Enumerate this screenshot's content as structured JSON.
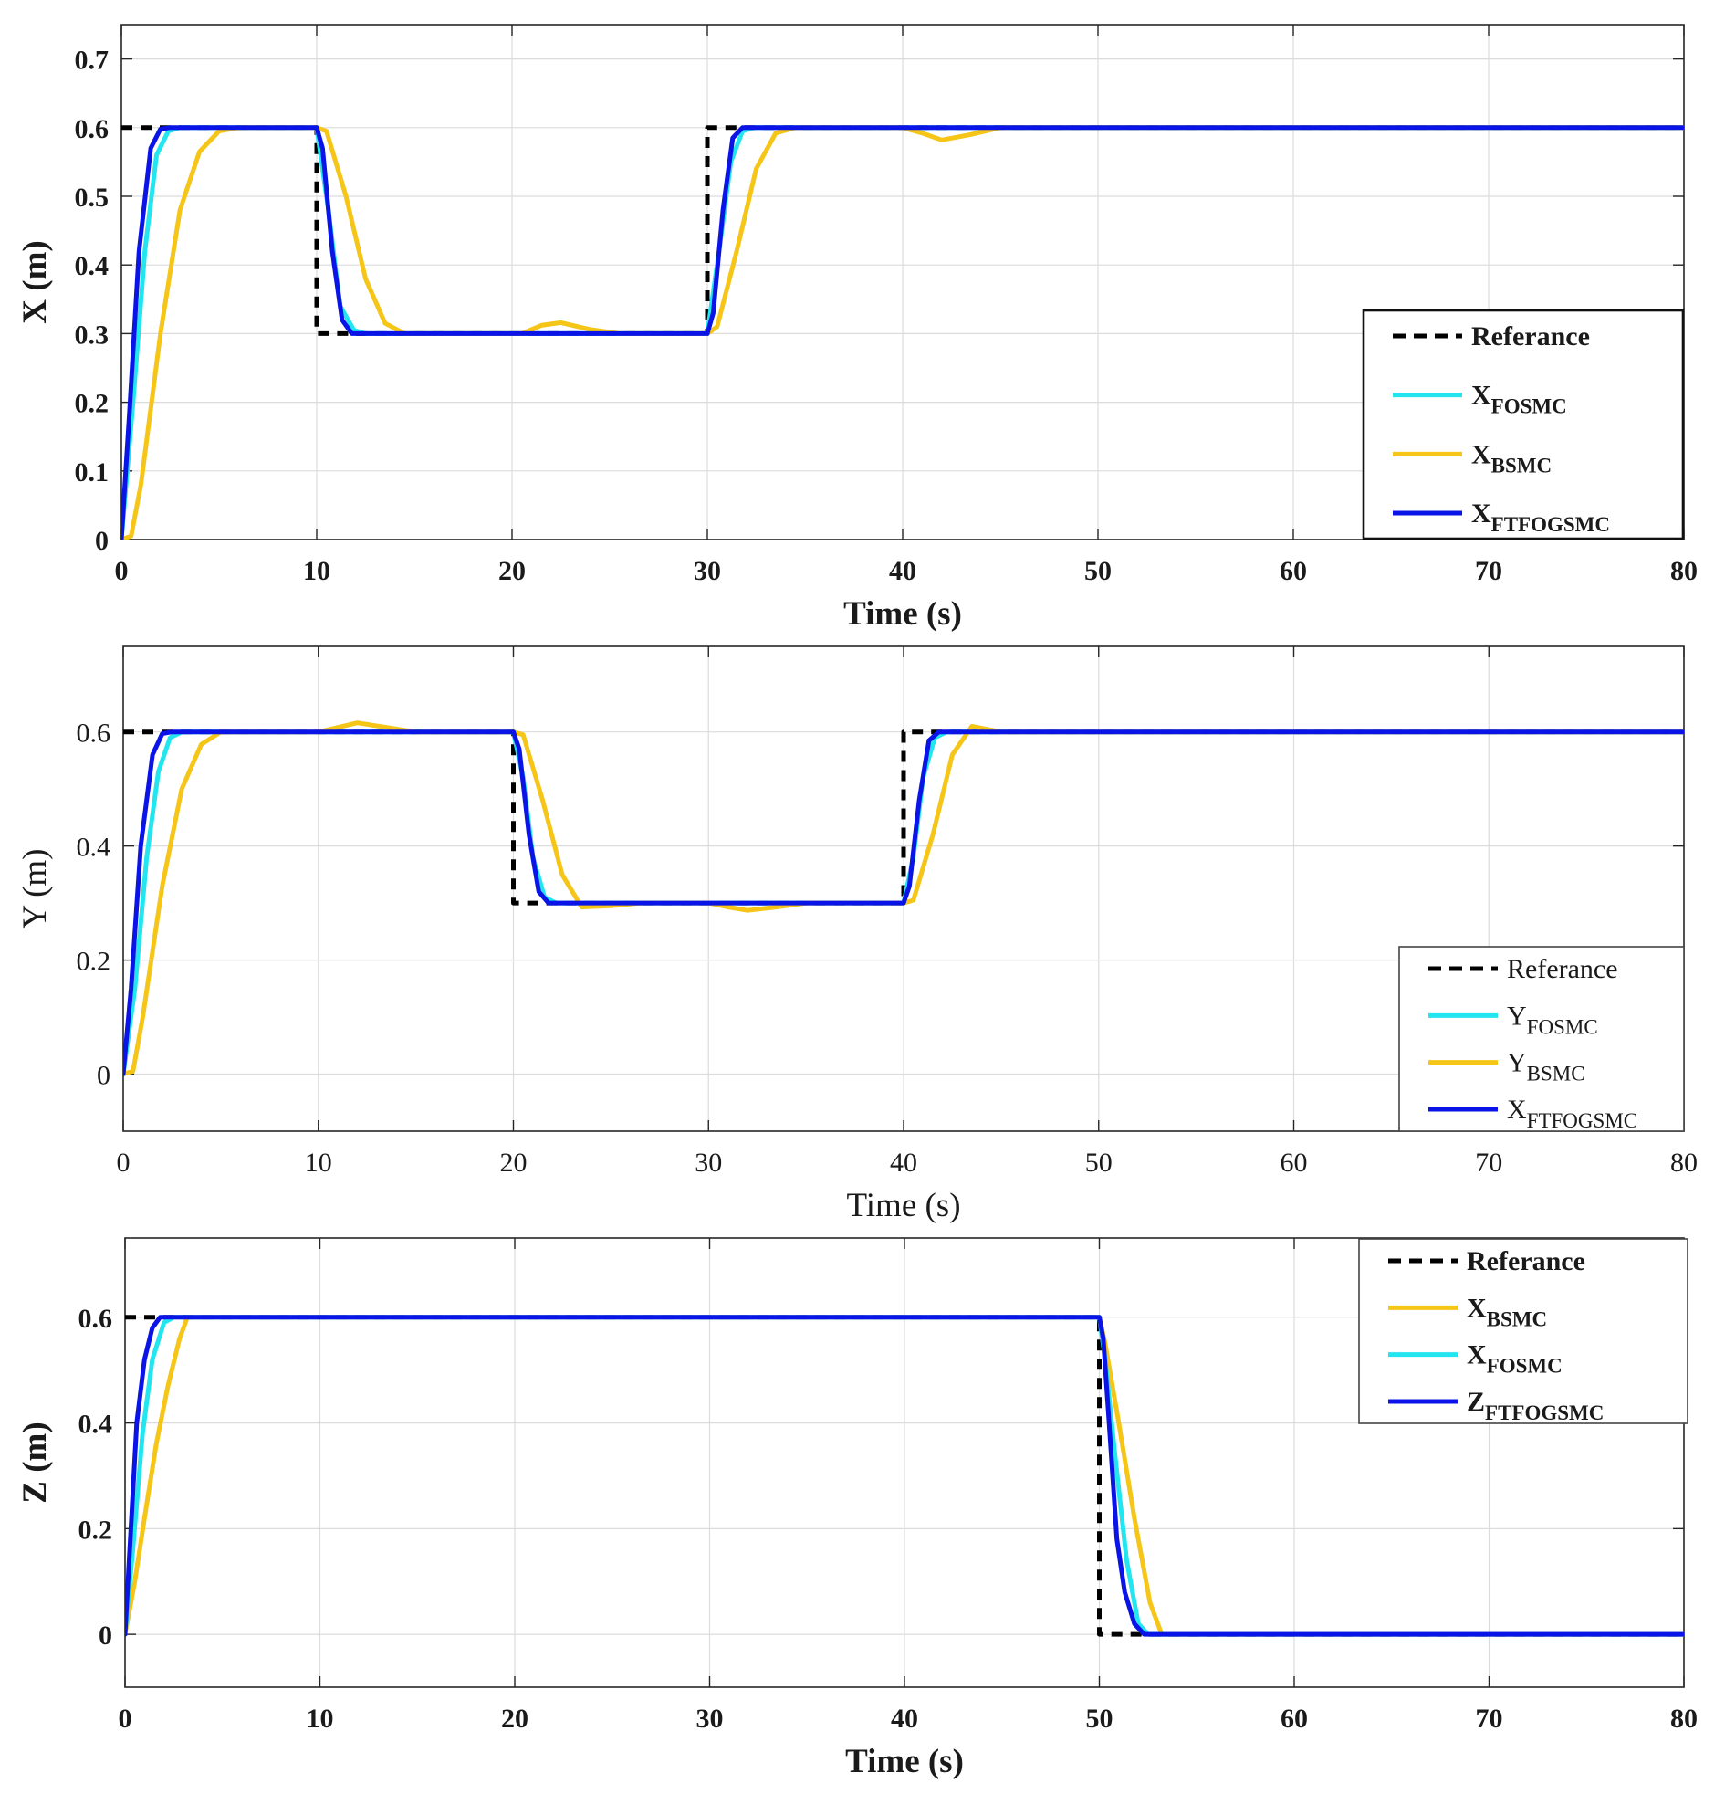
{
  "colors": {
    "reference": "#000000",
    "fosmc": "#22E5F0",
    "bsmc": "#F5C518",
    "ftfogsmc": "#0A14E6",
    "grid": "#dcdcdc",
    "axis": "#262626"
  },
  "chart_data": [
    {
      "type": "line",
      "title": "",
      "xlabel": "Time (s)",
      "ylabel": "X (m)",
      "xlim": [
        0,
        80
      ],
      "ylim": [
        0,
        0.75
      ],
      "xticks": [
        0,
        10,
        20,
        30,
        40,
        50,
        60,
        70,
        80
      ],
      "yticks": [
        0,
        0.1,
        0.2,
        0.3,
        0.4,
        0.5,
        0.6,
        0.7
      ],
      "ytick_labels": [
        "0",
        "0.1",
        "0.2",
        "0.3",
        "0.4",
        "0.5",
        "0.6",
        "0.7"
      ],
      "xtick_labels": [
        "0",
        "10",
        "20",
        "30",
        "40",
        "50",
        "60",
        "70",
        "80"
      ],
      "grid": true,
      "font_style": "bold",
      "legend_position": "lower-right",
      "series": [
        {
          "name": "Referance",
          "main": "Referance",
          "sub": "",
          "style": "dashed",
          "color_key": "reference",
          "x": [
            0,
            10,
            10,
            30,
            30,
            80
          ],
          "y": [
            0.6,
            0.6,
            0.3,
            0.3,
            0.6,
            0.6
          ]
        },
        {
          "name": "X_FOSMC",
          "main": "X",
          "sub": "FOSMC",
          "style": "solid",
          "color_key": "fosmc",
          "x": [
            0,
            0.6,
            1.2,
            1.8,
            2.4,
            3.0,
            10,
            10.6,
            11.2,
            11.9,
            12.5,
            30,
            30.6,
            31.2,
            31.8,
            32.4,
            80
          ],
          "y": [
            0,
            0.2,
            0.42,
            0.56,
            0.595,
            0.6,
            0.6,
            0.48,
            0.34,
            0.305,
            0.3,
            0.3,
            0.42,
            0.55,
            0.595,
            0.6,
            0.6
          ]
        },
        {
          "name": "X_BSMC",
          "main": "X",
          "sub": "BSMC",
          "style": "solid",
          "color_key": "bsmc",
          "x": [
            0,
            0.5,
            1.0,
            2.0,
            3.0,
            4.0,
            5.0,
            6.0,
            10,
            10.5,
            11.5,
            12.5,
            13.5,
            14.5,
            20.5,
            21.5,
            22.5,
            24,
            25.5,
            30,
            30.5,
            31.5,
            32.5,
            33.5,
            34.5,
            40,
            41,
            42,
            43.5,
            45,
            80
          ],
          "y": [
            0,
            0.005,
            0.08,
            0.3,
            0.48,
            0.565,
            0.595,
            0.6,
            0.6,
            0.595,
            0.5,
            0.38,
            0.315,
            0.3,
            0.3,
            0.312,
            0.316,
            0.306,
            0.3,
            0.3,
            0.31,
            0.42,
            0.54,
            0.592,
            0.6,
            0.6,
            0.592,
            0.582,
            0.59,
            0.6,
            0.6
          ]
        },
        {
          "name": "X_FTFOGSMC",
          "main": "X",
          "sub": "FTFOGSMC",
          "style": "solid",
          "color_key": "ftfogsmc",
          "x": [
            0,
            0.4,
            0.9,
            1.5,
            2.0,
            2.5,
            10,
            10.3,
            10.8,
            11.3,
            11.8,
            30,
            30.3,
            30.8,
            31.3,
            31.8,
            80
          ],
          "y": [
            0,
            0.18,
            0.42,
            0.57,
            0.598,
            0.6,
            0.6,
            0.57,
            0.42,
            0.32,
            0.3,
            0.3,
            0.33,
            0.48,
            0.585,
            0.6,
            0.6
          ]
        }
      ]
    },
    {
      "type": "line",
      "title": "",
      "xlabel": "Time (s)",
      "ylabel": "Y (m)",
      "xlim": [
        0,
        80
      ],
      "ylim": [
        -0.1,
        0.75
      ],
      "xticks": [
        0,
        10,
        20,
        30,
        40,
        50,
        60,
        70,
        80
      ],
      "yticks": [
        0,
        0.2,
        0.4,
        0.6
      ],
      "ytick_labels": [
        "0",
        "0.2",
        "0.4",
        "0.6"
      ],
      "xtick_labels": [
        "0",
        "10",
        "20",
        "30",
        "40",
        "50",
        "60",
        "70",
        "80"
      ],
      "grid": true,
      "font_style": "normal",
      "legend_position": "lower-right",
      "series": [
        {
          "name": "Referance",
          "main": "Referance",
          "sub": "",
          "style": "dashed",
          "color_key": "reference",
          "x": [
            0,
            20,
            20,
            40,
            40,
            80
          ],
          "y": [
            0.6,
            0.6,
            0.3,
            0.3,
            0.6,
            0.6
          ]
        },
        {
          "name": "Y_FOSMC",
          "main": "Y",
          "sub": "FOSMC",
          "style": "solid",
          "color_key": "fosmc",
          "x": [
            0,
            0.6,
            1.2,
            1.8,
            2.4,
            3.0,
            20,
            20.5,
            21.0,
            21.6,
            22.2,
            40,
            40.5,
            41.0,
            41.6,
            42.2,
            80
          ],
          "y": [
            0,
            0.15,
            0.38,
            0.53,
            0.59,
            0.6,
            0.6,
            0.52,
            0.38,
            0.31,
            0.3,
            0.3,
            0.38,
            0.52,
            0.59,
            0.6,
            0.6
          ]
        },
        {
          "name": "Y_BSMC",
          "main": "Y",
          "sub": "BSMC",
          "style": "solid",
          "color_key": "bsmc",
          "x": [
            0,
            0.5,
            1.0,
            2.0,
            3.0,
            4.0,
            5.0,
            10,
            11,
            12,
            13.5,
            15,
            20,
            20.5,
            21.5,
            22.5,
            23.5,
            25,
            26.5,
            30,
            31,
            32,
            33.5,
            35,
            40,
            40.5,
            41.5,
            42.5,
            43.5,
            45,
            80
          ],
          "y": [
            0,
            0.005,
            0.1,
            0.33,
            0.5,
            0.578,
            0.6,
            0.6,
            0.608,
            0.616,
            0.608,
            0.6,
            0.6,
            0.595,
            0.48,
            0.35,
            0.293,
            0.295,
            0.3,
            0.3,
            0.293,
            0.287,
            0.293,
            0.3,
            0.3,
            0.305,
            0.42,
            0.56,
            0.61,
            0.6,
            0.6
          ]
        },
        {
          "name": "X_FTFOGSMC",
          "main": "X",
          "sub": "FTFOGSMC",
          "style": "solid",
          "color_key": "ftfogsmc",
          "x": [
            0,
            0.4,
            0.9,
            1.5,
            2.0,
            2.5,
            20,
            20.3,
            20.8,
            21.3,
            21.8,
            40,
            40.3,
            40.8,
            41.3,
            41.8,
            80
          ],
          "y": [
            0,
            0.15,
            0.4,
            0.56,
            0.597,
            0.6,
            0.6,
            0.57,
            0.42,
            0.32,
            0.3,
            0.3,
            0.33,
            0.48,
            0.585,
            0.6,
            0.6
          ]
        }
      ]
    },
    {
      "type": "line",
      "title": "",
      "xlabel": "Time (s)",
      "ylabel": "Z (m)",
      "xlim": [
        0,
        80
      ],
      "ylim": [
        -0.1,
        0.75
      ],
      "xticks": [
        0,
        10,
        20,
        30,
        40,
        50,
        60,
        70,
        80
      ],
      "yticks": [
        0,
        0.2,
        0.4,
        0.6
      ],
      "ytick_labels": [
        "0",
        "0.2",
        "0.4",
        "0.6"
      ],
      "xtick_labels": [
        "0",
        "10",
        "20",
        "30",
        "40",
        "50",
        "60",
        "70",
        "80"
      ],
      "grid": true,
      "font_style": "bold",
      "legend_position": "top-right",
      "series": [
        {
          "name": "Referance",
          "main": "Referance",
          "sub": "",
          "style": "dashed",
          "color_key": "reference",
          "x": [
            0,
            50,
            50,
            80
          ],
          "y": [
            0.6,
            0.6,
            0,
            0
          ]
        },
        {
          "name": "X_BSMC",
          "main": "X",
          "sub": "BSMC",
          "style": "solid",
          "color_key": "bsmc",
          "x": [
            0,
            0.5,
            1.0,
            1.6,
            2.2,
            2.8,
            3.2,
            50,
            50.3,
            51.0,
            51.8,
            52.6,
            53.2,
            80
          ],
          "y": [
            0,
            0.1,
            0.22,
            0.36,
            0.47,
            0.56,
            0.6,
            0.6,
            0.55,
            0.4,
            0.22,
            0.06,
            0,
            0
          ]
        },
        {
          "name": "X_FOSMC",
          "main": "X",
          "sub": "FOSMC",
          "style": "solid",
          "color_key": "fosmc",
          "x": [
            0,
            0.4,
            0.9,
            1.4,
            2.0,
            2.5,
            50,
            50.3,
            50.8,
            51.4,
            52.0,
            52.5,
            80
          ],
          "y": [
            0,
            0.16,
            0.38,
            0.52,
            0.59,
            0.6,
            0.6,
            0.52,
            0.34,
            0.14,
            0.02,
            0,
            0
          ]
        },
        {
          "name": "Z_FTFOGSMC",
          "main": "Z",
          "sub": "FTFOGSMC",
          "style": "solid",
          "color_key": "ftfogsmc",
          "x": [
            0,
            0.3,
            0.6,
            1.0,
            1.4,
            1.8,
            50,
            50.2,
            50.5,
            50.9,
            51.3,
            51.8,
            52.3,
            80
          ],
          "y": [
            0,
            0.2,
            0.4,
            0.52,
            0.58,
            0.6,
            0.6,
            0.56,
            0.4,
            0.18,
            0.08,
            0.02,
            0,
            0
          ]
        }
      ]
    }
  ]
}
